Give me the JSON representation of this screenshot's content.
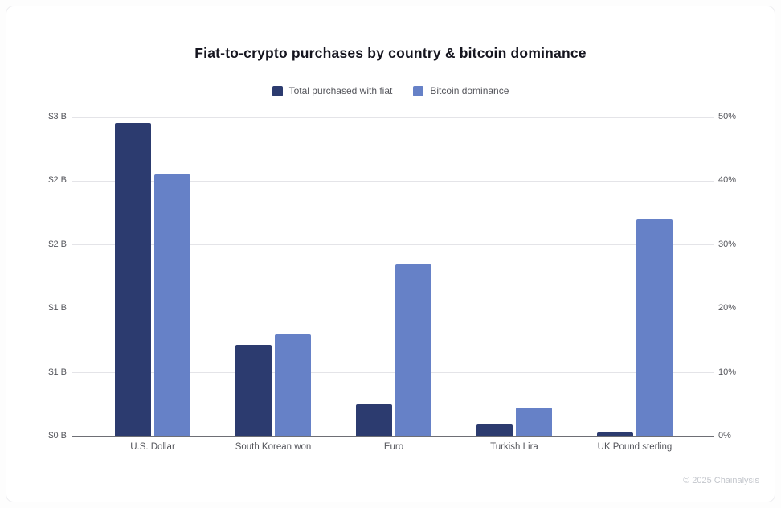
{
  "title": "Fiat-to-crypto purchases by country & bitcoin dominance",
  "legend": [
    {
      "label": "Total purchased with fiat",
      "color": "#2c3b6f"
    },
    {
      "label": "Bitcoin dominance",
      "color": "#6681c7"
    }
  ],
  "footer": "© 2025 Chainalysis",
  "colors": {
    "fiat_series": "#2c3b6f",
    "dominance_series": "#6681c7",
    "gridline": "#e4e4e8",
    "axis_text": "#55565c",
    "title_text": "#15151f"
  },
  "chart_data": {
    "type": "bar",
    "title": "Fiat-to-crypto purchases by country & bitcoin dominance",
    "categories": [
      "U.S. Dollar",
      "South Korean won",
      "Euro",
      "Turkish Lira",
      "UK Pound sterling"
    ],
    "series": [
      {
        "name": "Total purchased with fiat",
        "axis": "left",
        "unit": "USD billions",
        "color": "#2c3b6f",
        "values": [
          2.95,
          0.86,
          0.3,
          0.11,
          0.04
        ]
      },
      {
        "name": "Bitcoin dominance",
        "axis": "right",
        "unit": "percent",
        "color": "#6681c7",
        "values": [
          41,
          16,
          27,
          4.5,
          34
        ]
      }
    ],
    "left_axis": {
      "tick_labels": [
        "$3 B",
        "$2 B",
        "$2 B",
        "$1 B",
        "$1 B",
        "$0 B"
      ],
      "min": 0,
      "max": 3
    },
    "right_axis": {
      "tick_labels": [
        "50%",
        "40%",
        "30%",
        "20%",
        "10%",
        "0%"
      ],
      "min": 0,
      "max": 50
    },
    "grid": true,
    "legend_position": "top"
  }
}
